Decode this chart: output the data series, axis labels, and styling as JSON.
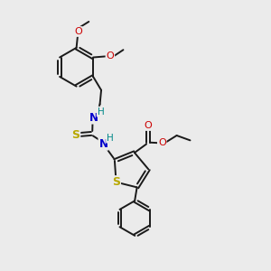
{
  "background_color": "#ebebeb",
  "bond_color": "#1a1a1a",
  "colors": {
    "S": "#b8a800",
    "N": "#0000cc",
    "O": "#cc0000",
    "H_label": "#008888",
    "C": "#1a1a1a"
  },
  "figsize": [
    3.0,
    3.0
  ],
  "dpi": 100
}
